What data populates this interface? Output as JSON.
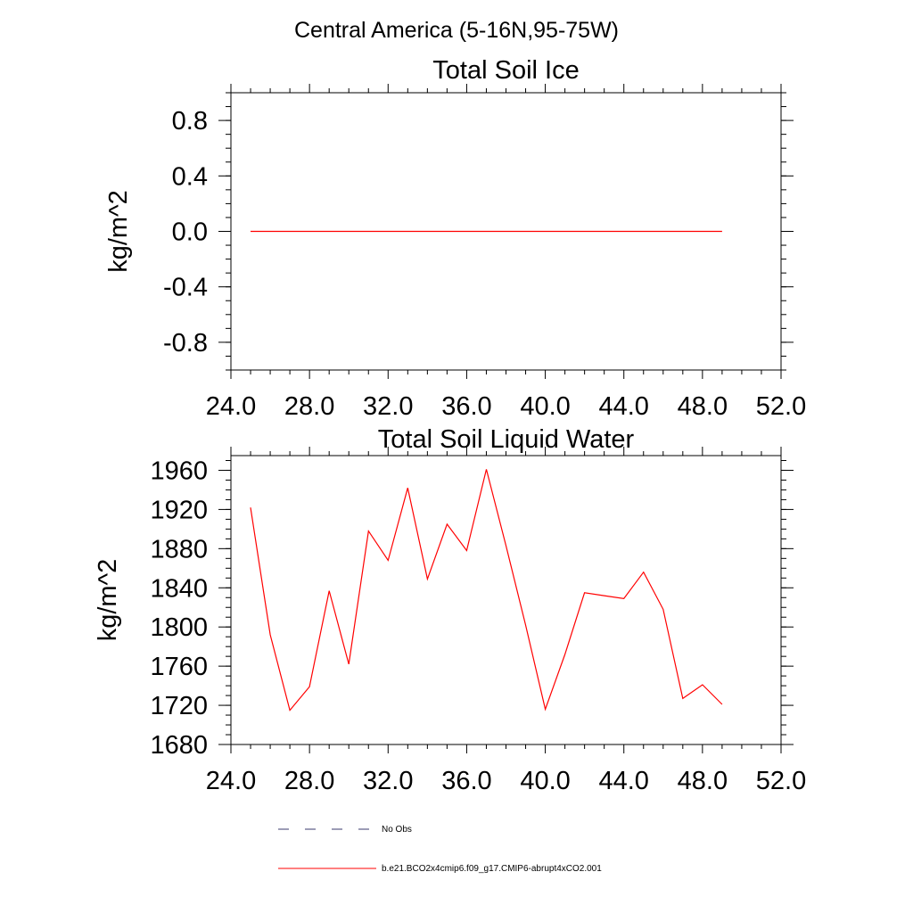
{
  "figure": {
    "suptitle": "Central America (5-16N,95-75W)"
  },
  "chart_data": [
    {
      "type": "line",
      "title": "Total Soil Ice",
      "xlabel": "",
      "ylabel": "kg/m^2",
      "xlim": [
        24,
        52
      ],
      "ylim": [
        -1.0,
        1.0
      ],
      "xticks": [
        "24.0",
        "28.0",
        "32.0",
        "36.0",
        "40.0",
        "44.0",
        "48.0",
        "52.0"
      ],
      "yticks": [
        "0.8",
        "0.4",
        "0.0",
        "-0.4",
        "-0.8"
      ],
      "grid": false,
      "series": [
        {
          "name": "b.e21.BCO2x4cmip6.f09_g17.CMIP6-abrupt4xCO2.001",
          "color": "#ff0000",
          "x": [
            25,
            26,
            27,
            28,
            29,
            30,
            31,
            32,
            33,
            34,
            35,
            36,
            37,
            38,
            39,
            40,
            41,
            42,
            43,
            44,
            45,
            46,
            47,
            48,
            49
          ],
          "values": [
            0,
            0,
            0,
            0,
            0,
            0,
            0,
            0,
            0,
            0,
            0,
            0,
            0,
            0,
            0,
            0,
            0,
            0,
            0,
            0,
            0,
            0,
            0,
            0,
            0
          ]
        }
      ]
    },
    {
      "type": "line",
      "title": "Total Soil Liquid Water",
      "xlabel": "",
      "ylabel": "kg/m^2",
      "xlim": [
        24,
        52
      ],
      "ylim": [
        1680,
        1975
      ],
      "xticks": [
        "24.0",
        "28.0",
        "32.0",
        "36.0",
        "40.0",
        "44.0",
        "48.0",
        "52.0"
      ],
      "yticks": [
        "1960",
        "1920",
        "1880",
        "1840",
        "1800",
        "1760",
        "1720",
        "1680"
      ],
      "grid": false,
      "series": [
        {
          "name": "b.e21.BCO2x4cmip6.f09_g17.CMIP6-abrupt4xCO2.001",
          "color": "#ff0000",
          "x": [
            25,
            26,
            27,
            28,
            29,
            30,
            31,
            32,
            33,
            34,
            35,
            36,
            37,
            38,
            39,
            40,
            41,
            42,
            43,
            44,
            45,
            46,
            47,
            48,
            49
          ],
          "values": [
            1922,
            1792,
            1715,
            1739,
            1837,
            1762,
            1898,
            1868,
            1942,
            1849,
            1905,
            1878,
            1961,
            1883,
            1802,
            1716,
            1772,
            1835,
            1832,
            1829,
            1856,
            1818,
            1727,
            1741,
            1721
          ]
        }
      ]
    }
  ],
  "legend": {
    "position": "bottom",
    "entries": [
      {
        "label": "No Obs",
        "color": "#3a3a6e",
        "style": "dashed"
      },
      {
        "label": "b.e21.BCO2x4cmip6.f09_g17.CMIP6-abrupt4xCO2.001",
        "color": "#ff0000",
        "style": "solid"
      }
    ]
  }
}
